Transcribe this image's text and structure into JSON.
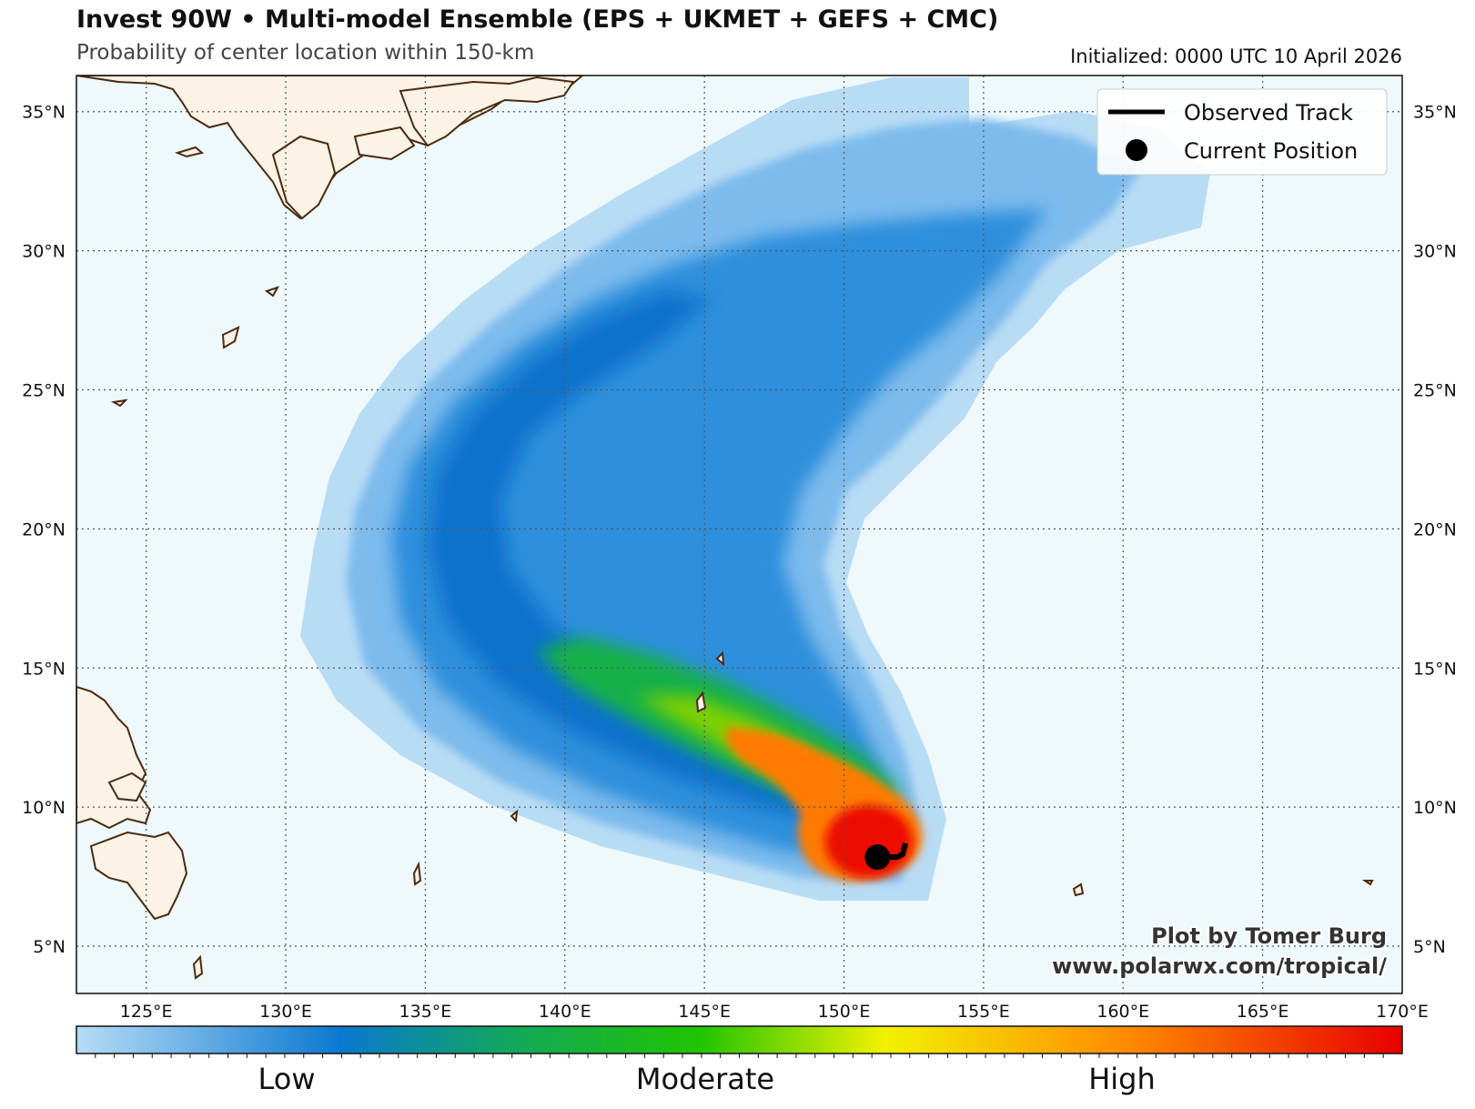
{
  "header": {
    "title": "Invest 90W • Multi-model Ensemble (EPS + UKMET + GEFS + CMC)",
    "subtitle": "Probability of center location within 150-km",
    "initialized": "Initialized: 0000 UTC 10 April 2026"
  },
  "map": {
    "lon_range": [
      122.5,
      170
    ],
    "lat_range": [
      3.3,
      36.3
    ],
    "lon_ticks": [
      "125°E",
      "130°E",
      "135°E",
      "140°E",
      "145°E",
      "150°E",
      "155°E",
      "160°E",
      "165°E",
      "170°E"
    ],
    "lat_ticks": [
      "5°N",
      "10°N",
      "15°N",
      "20°N",
      "25°N",
      "30°N",
      "35°N"
    ],
    "ocean_color": "#eef9fc",
    "land_color": "#fbf3e6",
    "coast_color": "#4a2a10",
    "grid_style": "dotted"
  },
  "legend": {
    "track_label": "Observed Track",
    "position_label": "Current Position",
    "placement": "top-right"
  },
  "credit": {
    "line1": "Plot by Tomer Burg",
    "line2": "www.polarwx.com/tropical/"
  },
  "colorbar": {
    "labels": [
      "Low",
      "Moderate",
      "High"
    ],
    "colors": [
      "#b8dcf6",
      "#0a78d0",
      "#12a85a",
      "#20c400",
      "#f2f200",
      "#ff8c00",
      "#e80000"
    ]
  },
  "storm": {
    "current_position": {
      "lon": 151.2,
      "lat": 8.2
    },
    "observed_track": [
      [
        151.2,
        8.2
      ],
      [
        151.9,
        8.2
      ],
      [
        152.1,
        8.3
      ],
      [
        152.2,
        8.7
      ]
    ]
  }
}
